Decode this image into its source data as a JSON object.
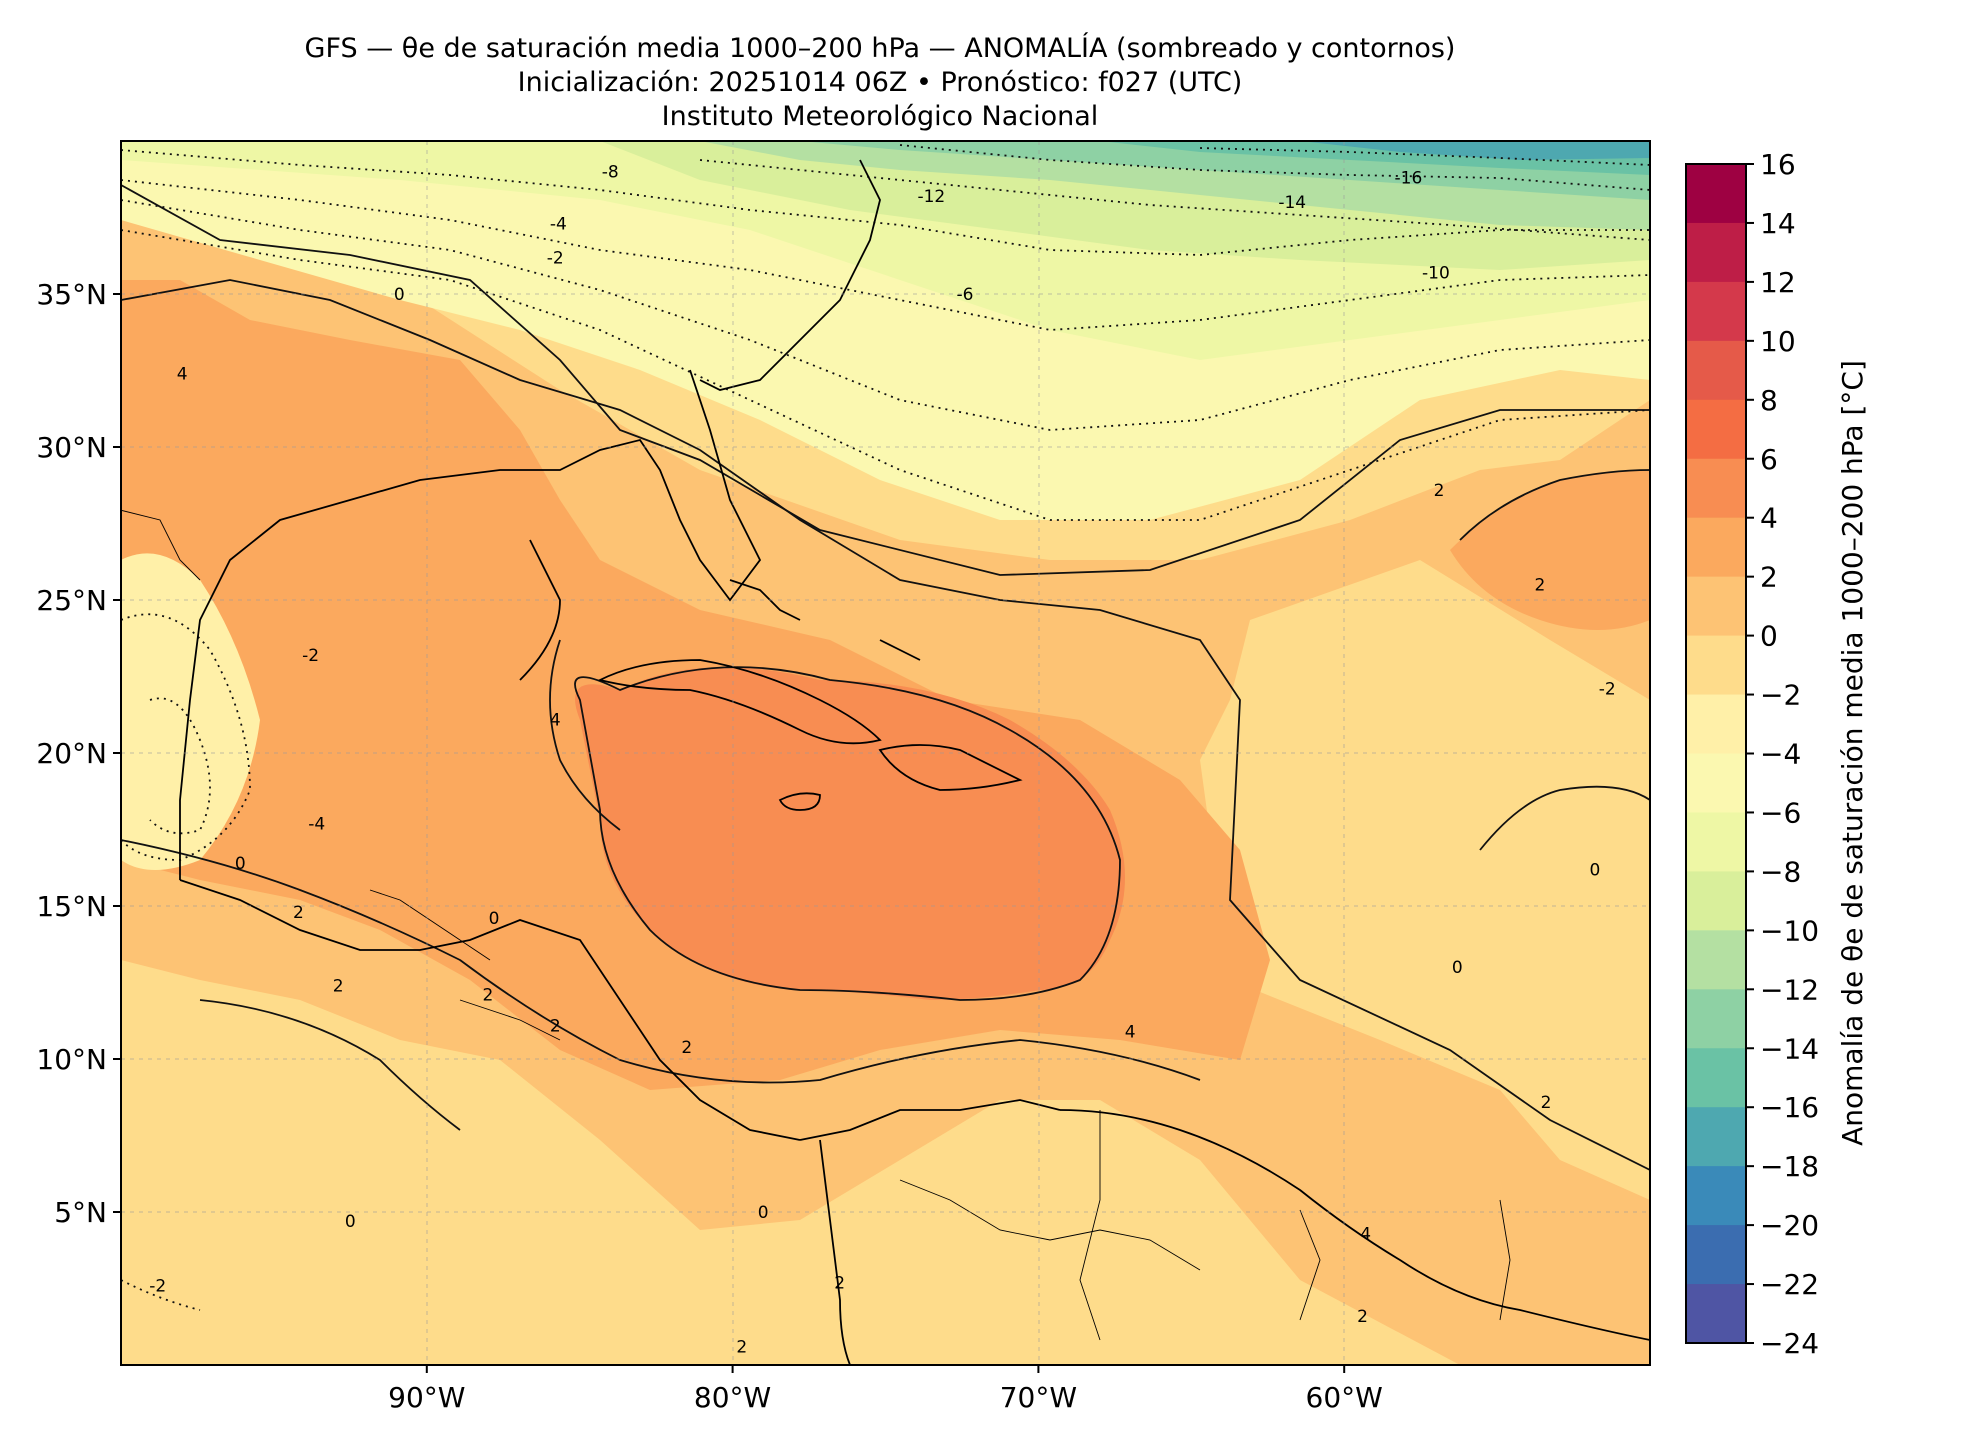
{
  "title": {
    "line1": "GFS — θe de saturación media 1000–200 hPa — ANOMALÍA (sombreado y contornos)",
    "line2": "Inicialización: 20251014 06Z   •   Pronóstico: f027 (UTC)",
    "line3": "Instituto Meteorológico Nacional"
  },
  "map": {
    "projection": "PlateCarree",
    "lon_range": [
      -100,
      -50
    ],
    "lat_range": [
      0,
      40
    ],
    "grid": true,
    "lon_ticks": [
      {
        "value": -90,
        "label": "90°W"
      },
      {
        "value": -80,
        "label": "80°W"
      },
      {
        "value": -70,
        "label": "70°W"
      },
      {
        "value": -60,
        "label": "60°W"
      }
    ],
    "lat_ticks": [
      {
        "value": 5,
        "label": "5°N"
      },
      {
        "value": 10,
        "label": "10°N"
      },
      {
        "value": 15,
        "label": "15°N"
      },
      {
        "value": 20,
        "label": "20°N"
      },
      {
        "value": 25,
        "label": "25°N"
      },
      {
        "value": 30,
        "label": "30°N"
      },
      {
        "value": 35,
        "label": "35°N"
      }
    ],
    "contour_labels": [
      {
        "text": "-16",
        "lon": -57.9,
        "lat": 38.8
      },
      {
        "text": "-14",
        "lon": -61.7,
        "lat": 38.0
      },
      {
        "text": "-12",
        "lon": -73.5,
        "lat": 38.2
      },
      {
        "text": "-10",
        "lon": -57.0,
        "lat": 35.7
      },
      {
        "text": "-8",
        "lon": -84.0,
        "lat": 39.0
      },
      {
        "text": "-6",
        "lon": -72.4,
        "lat": 35.0
      },
      {
        "text": "-4",
        "lon": -85.7,
        "lat": 37.3
      },
      {
        "text": "-2",
        "lon": -85.8,
        "lat": 36.2
      },
      {
        "text": "0",
        "lon": -90.9,
        "lat": 35.0
      },
      {
        "text": "2",
        "lon": -56.9,
        "lat": 28.6
      },
      {
        "text": "2",
        "lon": -53.6,
        "lat": 25.5
      },
      {
        "text": "-2",
        "lon": -51.4,
        "lat": 22.1
      },
      {
        "text": "-2",
        "lon": -93.8,
        "lat": 23.2
      },
      {
        "text": "-4",
        "lon": -93.6,
        "lat": 17.7
      },
      {
        "text": "0",
        "lon": -96.1,
        "lat": 16.4
      },
      {
        "text": "4",
        "lon": -98.0,
        "lat": 32.4
      },
      {
        "text": "4",
        "lon": -85.8,
        "lat": 21.1
      },
      {
        "text": "0",
        "lon": -87.8,
        "lat": 14.6
      },
      {
        "text": "2",
        "lon": -92.9,
        "lat": 12.4
      },
      {
        "text": "2",
        "lon": -88.0,
        "lat": 12.1
      },
      {
        "text": "2",
        "lon": -94.2,
        "lat": 14.8
      },
      {
        "text": "2",
        "lon": -85.8,
        "lat": 11.1
      },
      {
        "text": "2",
        "lon": -81.5,
        "lat": 10.4
      },
      {
        "text": "4",
        "lon": -67.0,
        "lat": 10.9
      },
      {
        "text": "0",
        "lon": -51.8,
        "lat": 16.2
      },
      {
        "text": "0",
        "lon": -56.3,
        "lat": 13.0
      },
      {
        "text": "2",
        "lon": -53.4,
        "lat": 8.6
      },
      {
        "text": "4",
        "lon": -59.3,
        "lat": 4.3
      },
      {
        "text": "2",
        "lon": -59.4,
        "lat": 1.6
      },
      {
        "text": "0",
        "lon": -79.0,
        "lat": 5.0
      },
      {
        "text": "0",
        "lon": -92.5,
        "lat": 4.7
      },
      {
        "text": "-2",
        "lon": -98.8,
        "lat": 2.6
      },
      {
        "text": "2",
        "lon": -76.5,
        "lat": 2.7
      },
      {
        "text": "2",
        "lon": -79.7,
        "lat": 0.6
      }
    ]
  },
  "colorbar": {
    "label": "Anomalía de θe de saturación media 1000–200 hPa [°C]",
    "min": -24,
    "max": 16,
    "step": 2,
    "tick_labels": [
      "16",
      "14",
      "12",
      "10",
      "8",
      "6",
      "4",
      "2",
      "0",
      "−2",
      "−4",
      "−6",
      "−8",
      "−10",
      "−12",
      "−14",
      "−16",
      "−18",
      "−20",
      "−22",
      "−24"
    ],
    "bins_top_to_bottom": [
      "#9e0142",
      "#be1e47",
      "#d4394b",
      "#e55a49",
      "#f46d43",
      "#f88d52",
      "#fba95e",
      "#fdc374",
      "#fedc8b",
      "#fff0a8",
      "#fbf8b0",
      "#eef7a5",
      "#d9ef9b",
      "#b4e0a2",
      "#8ed1a4",
      "#6ac2a5",
      "#4ea8b0",
      "#3a8ab9",
      "#3b6db0",
      "#4f55a4"
    ]
  },
  "chart_data": {
    "type": "heatmap",
    "field": "saturation equivalent potential temperature anomaly, 1000-200 hPa mean",
    "units": "°C",
    "x": "longitude",
    "y": "latitude",
    "xlim": [
      -100,
      -50
    ],
    "ylim": [
      0,
      40
    ],
    "clim": [
      -24,
      16
    ],
    "contour_interval": 2,
    "grid": true,
    "legend": "colorbar-right"
  }
}
